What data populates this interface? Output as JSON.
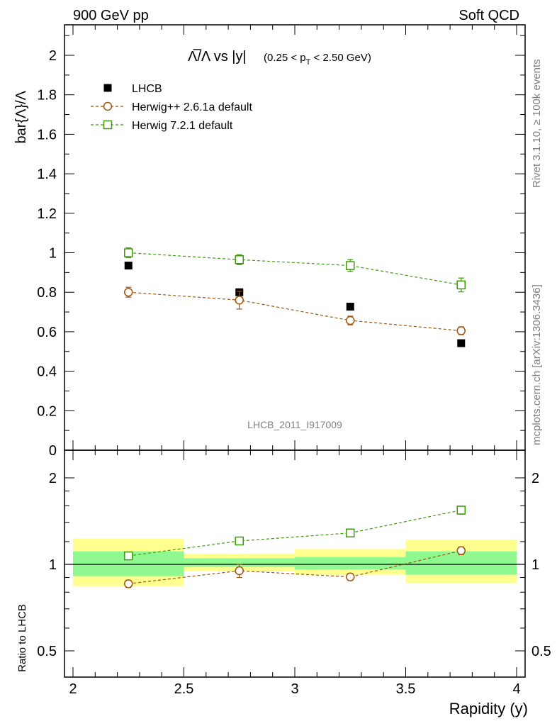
{
  "header": {
    "left": "900 GeV pp",
    "right": "Soft QCD"
  },
  "side": {
    "rivet": "Rivet 3.1.10, ≥ 100k events",
    "mcplots": "mcplots.cern.ch [arXiv:1306.3436]"
  },
  "watermark": "LHCB_2011_I917009",
  "title": {
    "main": "Λ̅/Λ vs |y|",
    "sub": "(0.25 < p",
    "sub_index": "T",
    "sub_end": " < 2.50 GeV)"
  },
  "colors": {
    "data": "#000000",
    "herwigpp": "#a0520a",
    "herwig7": "#3c9a0a",
    "band_inner": "#90f890",
    "band_outer": "#ffff90"
  },
  "chart_data": [
    {
      "type": "scatter",
      "ylabel": "bar{Λ}/Λ",
      "xlim": [
        2,
        4
      ],
      "ylim": [
        0,
        2.15
      ],
      "yticks": [
        "0",
        "0.2",
        "0.4",
        "0.6",
        "0.8",
        "1",
        "1.2",
        "1.4",
        "1.6",
        "1.8",
        "2"
      ],
      "legend_position": "top-left",
      "x": [
        2.25,
        2.75,
        3.25,
        3.75
      ],
      "series": [
        {
          "name": "LHCB",
          "marker": "square-filled",
          "values": [
            0.935,
            0.8,
            0.727,
            0.542
          ]
        },
        {
          "name": "Herwig++ 2.6.1a default",
          "marker": "circle-open",
          "line": "dashed",
          "values": [
            0.8,
            0.76,
            0.657,
            0.605
          ],
          "errors": [
            0.025,
            0.045,
            0.022,
            0.02
          ]
        },
        {
          "name": "Herwig 7.2.1 default",
          "marker": "square-open",
          "line": "dashed",
          "values": [
            1.0,
            0.965,
            0.935,
            0.837
          ],
          "errors": [
            0.025,
            0.025,
            0.03,
            0.035
          ]
        }
      ]
    },
    {
      "type": "scatter",
      "ylabel": "Ratio to LHCB",
      "xlabel": "Rapidity (y)",
      "xlim": [
        2,
        4
      ],
      "ylim": [
        0.4,
        2.3
      ],
      "yscale": "log",
      "xticks": [
        "2",
        "2.5",
        "3",
        "3.5",
        "4"
      ],
      "yticks": [
        "0.5",
        "1",
        "2"
      ],
      "x": [
        2.25,
        2.75,
        3.25,
        3.75
      ],
      "bins": [
        [
          2.0,
          2.5
        ],
        [
          2.5,
          3.0
        ],
        [
          3.0,
          3.5
        ],
        [
          3.5,
          4.0
        ]
      ],
      "band_inner": [
        [
          0.91,
          1.11
        ],
        [
          0.98,
          1.05
        ],
        [
          0.96,
          1.06
        ],
        [
          0.92,
          1.11
        ]
      ],
      "band_outer": [
        [
          0.84,
          1.23
        ],
        [
          0.95,
          1.09
        ],
        [
          0.92,
          1.13
        ],
        [
          0.86,
          1.22
        ]
      ],
      "series": [
        {
          "name": "Herwig++ 2.6.1a default",
          "values": [
            0.856,
            0.95,
            0.904,
            1.116
          ],
          "errors": [
            0.025,
            0.05,
            0.025,
            0.035
          ]
        },
        {
          "name": "Herwig 7.2.1 default",
          "values": [
            1.07,
            1.206,
            1.286,
            1.544
          ],
          "errors": [
            0.02,
            0.03,
            0.04,
            0.05
          ]
        }
      ]
    }
  ]
}
